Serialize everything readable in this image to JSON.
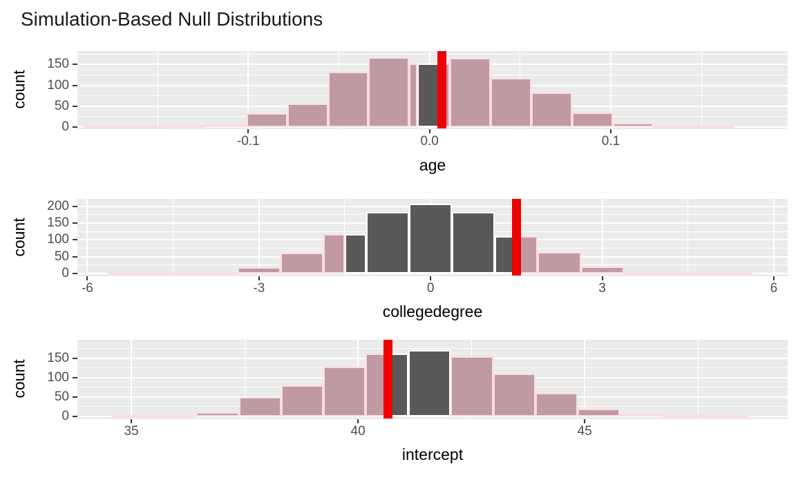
{
  "title": "Simulation-Based Null Distributions",
  "colors": {
    "panel_background": "#EBEBEB",
    "gridline": "#FFFFFF",
    "null_bar_fill": "#595959",
    "shaded_bar_fill": "#C09AA2",
    "shaded_bar_border": "#FCDCE1",
    "observed_line": "#EE0000",
    "tick_text": "#4D4D4D"
  },
  "chart_data": [
    {
      "type": "bar",
      "subtype": "histogram-facet",
      "facet_label": "age",
      "xlabel": "age",
      "ylabel": "count",
      "xlim": [
        -0.1943,
        0.1976
      ],
      "ylim": [
        0,
        182
      ],
      "xticks": [
        -0.1,
        0.0,
        0.1
      ],
      "xtick_labels": [
        "-0.1",
        "0.0",
        "0.1"
      ],
      "yticks": [
        0,
        50,
        100,
        150
      ],
      "ytick_labels": [
        "0",
        "50",
        "100",
        "150"
      ],
      "yticks_minor": [
        25,
        75,
        125,
        175
      ],
      "xticks_minor": [
        -0.15,
        -0.05,
        0.05,
        0.15
      ],
      "observed_stat": 0.0068,
      "legend": "grid on, white gridlines, shaded two-sided p-value region in pink, middle region dark gray, red vertical observed line",
      "bars": [
        {
          "x0": -0.1907,
          "x1": -0.1683,
          "count": 1,
          "shade": "pink"
        },
        {
          "x0": -0.1683,
          "x1": -0.1459,
          "count": 2,
          "shade": "pink"
        },
        {
          "x0": -0.1459,
          "x1": -0.1234,
          "count": 5,
          "shade": "pink"
        },
        {
          "x0": -0.1234,
          "x1": -0.101,
          "count": 7,
          "shade": "pink"
        },
        {
          "x0": -0.101,
          "x1": -0.0785,
          "count": 33,
          "shade": "pink"
        },
        {
          "x0": -0.0785,
          "x1": -0.0561,
          "count": 57,
          "shade": "pink"
        },
        {
          "x0": -0.0561,
          "x1": -0.0337,
          "count": 133,
          "shade": "pink"
        },
        {
          "x0": -0.0337,
          "x1": -0.0112,
          "count": 167,
          "shade": "pink"
        },
        {
          "x0": -0.0112,
          "x1": -0.0068,
          "count": 152,
          "shade": "pink"
        },
        {
          "x0": -0.0068,
          "x1": 0.0068,
          "count": 152,
          "shade": "dark"
        },
        {
          "x0": 0.0068,
          "x1": 0.0112,
          "count": 152,
          "shade": "pink"
        },
        {
          "x0": 0.0112,
          "x1": 0.0337,
          "count": 165,
          "shade": "pink"
        },
        {
          "x0": 0.0337,
          "x1": 0.0561,
          "count": 118,
          "shade": "pink"
        },
        {
          "x0": 0.0561,
          "x1": 0.0785,
          "count": 83,
          "shade": "pink"
        },
        {
          "x0": 0.0785,
          "x1": 0.101,
          "count": 35,
          "shade": "pink"
        },
        {
          "x0": 0.101,
          "x1": 0.1234,
          "count": 10,
          "shade": "pink"
        },
        {
          "x0": 0.1234,
          "x1": 0.1459,
          "count": 2,
          "shade": "pink"
        },
        {
          "x0": 0.1459,
          "x1": 0.1683,
          "count": 1,
          "shade": "pink"
        }
      ]
    },
    {
      "type": "bar",
      "subtype": "histogram-facet",
      "facet_label": "collegedegree",
      "xlabel": "collegedegree",
      "ylabel": "count",
      "xlim": [
        -6.174,
        6.242
      ],
      "ylim": [
        0,
        222
      ],
      "xticks": [
        -6,
        -3,
        0,
        3,
        6
      ],
      "xtick_labels": [
        "-6",
        "-3",
        "0",
        "3",
        "6"
      ],
      "yticks": [
        0,
        50,
        100,
        150,
        200
      ],
      "ytick_labels": [
        "0",
        "50",
        "100",
        "150",
        "200"
      ],
      "yticks_minor": [
        25,
        75,
        125,
        175
      ],
      "xticks_minor": [
        -4.5,
        -1.5,
        1.5,
        4.5
      ],
      "observed_stat": 1.5,
      "legend": "grid on, white gridlines, shaded two-sided p-value region in pink, middle region dark gray, red vertical observed line",
      "bars": [
        {
          "x0": -5.625,
          "x1": -4.875,
          "count": 1,
          "shade": "pink"
        },
        {
          "x0": -4.875,
          "x1": -4.125,
          "count": 1,
          "shade": "pink"
        },
        {
          "x0": -4.125,
          "x1": -3.375,
          "count": 3,
          "shade": "pink"
        },
        {
          "x0": -3.375,
          "x1": -2.625,
          "count": 18,
          "shade": "pink"
        },
        {
          "x0": -2.625,
          "x1": -1.875,
          "count": 62,
          "shade": "pink"
        },
        {
          "x0": -1.875,
          "x1": -1.5,
          "count": 117,
          "shade": "pink"
        },
        {
          "x0": -1.5,
          "x1": -1.125,
          "count": 117,
          "shade": "dark"
        },
        {
          "x0": -1.125,
          "x1": -0.375,
          "count": 183,
          "shade": "dark"
        },
        {
          "x0": -0.375,
          "x1": 0.375,
          "count": 207,
          "shade": "dark"
        },
        {
          "x0": 0.375,
          "x1": 1.125,
          "count": 183,
          "shade": "dark"
        },
        {
          "x0": 1.125,
          "x1": 1.5,
          "count": 111,
          "shade": "dark"
        },
        {
          "x0": 1.5,
          "x1": 1.875,
          "count": 111,
          "shade": "pink"
        },
        {
          "x0": 1.875,
          "x1": 2.625,
          "count": 64,
          "shade": "pink"
        },
        {
          "x0": 2.625,
          "x1": 3.375,
          "count": 21,
          "shade": "pink"
        },
        {
          "x0": 3.375,
          "x1": 4.125,
          "count": 4,
          "shade": "pink"
        },
        {
          "x0": 4.125,
          "x1": 4.875,
          "count": 1,
          "shade": "pink"
        },
        {
          "x0": 4.875,
          "x1": 5.625,
          "count": 1,
          "shade": "pink"
        }
      ]
    },
    {
      "type": "bar",
      "subtype": "histogram-facet",
      "facet_label": "intercept",
      "xlabel": "intercept",
      "ylabel": "count",
      "xlim": [
        33.81,
        49.48
      ],
      "ylim": [
        0,
        198
      ],
      "xticks": [
        35,
        40,
        45
      ],
      "xtick_labels": [
        "35",
        "40",
        "45"
      ],
      "yticks": [
        0,
        50,
        100,
        150
      ],
      "ytick_labels": [
        "0",
        "50",
        "100",
        "150"
      ],
      "yticks_minor": [
        25,
        75,
        125,
        175
      ],
      "xticks_minor": [
        37.5,
        42.5,
        47.5
      ],
      "observed_stat": 40.66,
      "legend": "grid on, white gridlines, shaded two-sided p-value region in pink, middle region dark gray, red vertical observed line",
      "bars": [
        {
          "x0": 34.56,
          "x1": 35.5,
          "count": 2,
          "shade": "pink"
        },
        {
          "x0": 35.5,
          "x1": 36.43,
          "count": 2,
          "shade": "pink"
        },
        {
          "x0": 36.43,
          "x1": 37.37,
          "count": 10,
          "shade": "pink"
        },
        {
          "x0": 37.37,
          "x1": 38.3,
          "count": 50,
          "shade": "pink"
        },
        {
          "x0": 38.3,
          "x1": 39.24,
          "count": 81,
          "shade": "pink"
        },
        {
          "x0": 39.24,
          "x1": 40.17,
          "count": 128,
          "shade": "pink"
        },
        {
          "x0": 40.17,
          "x1": 40.66,
          "count": 163,
          "shade": "pink"
        },
        {
          "x0": 40.66,
          "x1": 41.11,
          "count": 163,
          "shade": "dark"
        },
        {
          "x0": 41.11,
          "x1": 42.04,
          "count": 172,
          "shade": "dark"
        },
        {
          "x0": 42.04,
          "x1": 42.98,
          "count": 155,
          "shade": "pink"
        },
        {
          "x0": 42.98,
          "x1": 43.91,
          "count": 110,
          "shade": "pink"
        },
        {
          "x0": 43.91,
          "x1": 44.85,
          "count": 60,
          "shade": "pink"
        },
        {
          "x0": 44.85,
          "x1": 45.78,
          "count": 20,
          "shade": "pink"
        },
        {
          "x0": 45.78,
          "x1": 46.72,
          "count": 8,
          "shade": "pink"
        },
        {
          "x0": 46.72,
          "x1": 47.65,
          "count": 3,
          "shade": "pink"
        },
        {
          "x0": 47.65,
          "x1": 48.59,
          "count": 1,
          "shade": "pink"
        }
      ]
    }
  ]
}
